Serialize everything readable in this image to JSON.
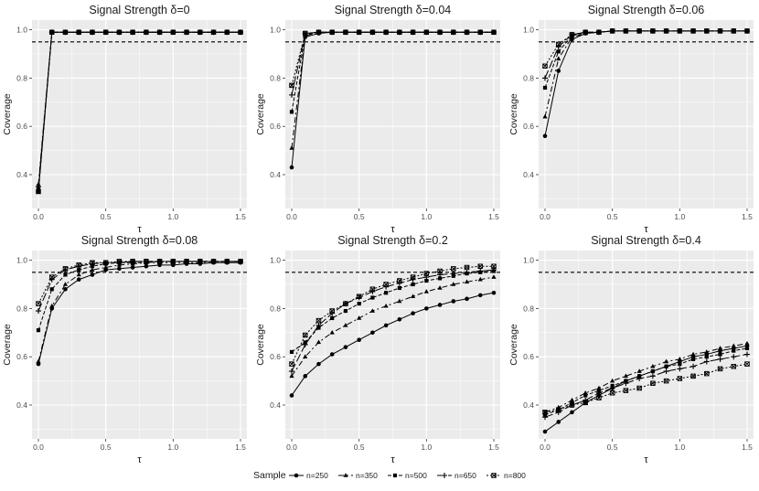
{
  "chart_data": [
    {
      "type": "line",
      "title": "Signal Strength δ=0",
      "xlabel": "τ",
      "ylabel": "Coverage",
      "xlim": [
        0,
        1.5
      ],
      "ylim": [
        0.3,
        1.0
      ],
      "xticks": [
        0,
        0.5,
        1,
        1.5
      ],
      "xtick_labels": [
        "0.0",
        "0.5",
        "1.0",
        "1.5"
      ],
      "yticks": [
        0.4,
        0.6,
        0.8,
        1.0
      ],
      "ytick_labels": [
        "0.4",
        "0.6",
        "0.8",
        "1.0"
      ],
      "reference_line": 0.95,
      "x": [
        0,
        0.1,
        0.2,
        0.3,
        0.4,
        0.5,
        0.6,
        0.7,
        0.8,
        0.9,
        1.0,
        1.1,
        1.2,
        1.3,
        1.4,
        1.5
      ],
      "series": [
        {
          "name": "n=250",
          "values": [
            0.33,
            0.99,
            0.99,
            0.99,
            0.99,
            0.99,
            0.99,
            0.99,
            0.99,
            0.99,
            0.99,
            0.99,
            0.99,
            0.99,
            0.99,
            0.99
          ]
        },
        {
          "name": "n=350",
          "values": [
            0.36,
            0.99,
            0.99,
            0.99,
            0.99,
            0.99,
            0.99,
            0.99,
            0.99,
            0.99,
            0.99,
            0.99,
            0.99,
            0.99,
            0.99,
            0.99
          ]
        },
        {
          "name": "n=500",
          "values": [
            0.34,
            0.99,
            0.99,
            0.99,
            0.99,
            0.99,
            0.99,
            0.99,
            0.99,
            0.99,
            0.99,
            0.99,
            0.99,
            0.99,
            0.99,
            0.99
          ]
        },
        {
          "name": "n=650",
          "values": [
            0.35,
            0.99,
            0.99,
            0.99,
            0.99,
            0.99,
            0.99,
            0.99,
            0.99,
            0.99,
            0.99,
            0.99,
            0.99,
            0.99,
            0.99,
            0.99
          ]
        },
        {
          "name": "n=800",
          "values": [
            0.33,
            0.99,
            0.99,
            0.99,
            0.99,
            0.99,
            0.99,
            0.99,
            0.99,
            0.99,
            0.99,
            0.99,
            0.99,
            0.99,
            0.99,
            0.99
          ]
        }
      ]
    },
    {
      "type": "line",
      "title": "Signal Strength δ=0.04",
      "xlabel": "τ",
      "ylabel": "Coverage",
      "xlim": [
        0,
        1.5
      ],
      "ylim": [
        0.3,
        1.0
      ],
      "xticks": [
        0,
        0.5,
        1,
        1.5
      ],
      "xtick_labels": [
        "0.0",
        "0.5",
        "1.0",
        "1.5"
      ],
      "yticks": [
        0.4,
        0.6,
        0.8,
        1.0
      ],
      "ytick_labels": [
        "0.4",
        "0.6",
        "0.8",
        "1.0"
      ],
      "reference_line": 0.95,
      "x": [
        0,
        0.1,
        0.2,
        0.3,
        0.4,
        0.5,
        0.6,
        0.7,
        0.8,
        0.9,
        1.0,
        1.1,
        1.2,
        1.3,
        1.4,
        1.5
      ],
      "series": [
        {
          "name": "n=250",
          "values": [
            0.43,
            0.97,
            0.985,
            0.99,
            0.99,
            0.99,
            0.99,
            0.99,
            0.99,
            0.99,
            0.99,
            0.99,
            0.99,
            0.99,
            0.99,
            0.99
          ]
        },
        {
          "name": "n=350",
          "values": [
            0.51,
            0.975,
            0.99,
            0.99,
            0.99,
            0.99,
            0.99,
            0.99,
            0.99,
            0.99,
            0.99,
            0.99,
            0.99,
            0.99,
            0.99,
            0.99
          ]
        },
        {
          "name": "n=500",
          "values": [
            0.66,
            0.98,
            0.99,
            0.99,
            0.99,
            0.99,
            0.99,
            0.99,
            0.99,
            0.99,
            0.99,
            0.99,
            0.99,
            0.99,
            0.99,
            0.99
          ]
        },
        {
          "name": "n=650",
          "values": [
            0.73,
            0.985,
            0.99,
            0.99,
            0.99,
            0.99,
            0.99,
            0.99,
            0.99,
            0.99,
            0.99,
            0.99,
            0.99,
            0.99,
            0.99,
            0.99
          ]
        },
        {
          "name": "n=800",
          "values": [
            0.77,
            0.985,
            0.99,
            0.99,
            0.99,
            0.99,
            0.99,
            0.99,
            0.99,
            0.99,
            0.99,
            0.99,
            0.99,
            0.99,
            0.99,
            0.99
          ]
        }
      ]
    },
    {
      "type": "line",
      "title": "Signal Strength δ=0.06",
      "xlabel": "τ",
      "ylabel": "Coverage",
      "xlim": [
        0,
        1.5
      ],
      "ylim": [
        0.3,
        1.0
      ],
      "xticks": [
        0,
        0.5,
        1,
        1.5
      ],
      "xtick_labels": [
        "0.0",
        "0.5",
        "1.0",
        "1.5"
      ],
      "yticks": [
        0.4,
        0.6,
        0.8,
        1.0
      ],
      "ytick_labels": [
        "0.4",
        "0.6",
        "0.8",
        "1.0"
      ],
      "reference_line": 0.95,
      "x": [
        0,
        0.1,
        0.2,
        0.3,
        0.4,
        0.5,
        0.6,
        0.7,
        0.8,
        0.9,
        1.0,
        1.1,
        1.2,
        1.3,
        1.4,
        1.5
      ],
      "series": [
        {
          "name": "n=250",
          "values": [
            0.56,
            0.83,
            0.96,
            0.985,
            0.99,
            0.995,
            0.995,
            0.995,
            0.995,
            0.995,
            0.995,
            0.995,
            0.995,
            0.995,
            0.995,
            0.995
          ]
        },
        {
          "name": "n=350",
          "values": [
            0.64,
            0.88,
            0.97,
            0.985,
            0.99,
            0.995,
            0.995,
            0.995,
            0.995,
            0.995,
            0.995,
            0.995,
            0.995,
            0.995,
            0.995,
            0.995
          ]
        },
        {
          "name": "n=500",
          "values": [
            0.76,
            0.91,
            0.975,
            0.99,
            0.99,
            0.995,
            0.995,
            0.995,
            0.995,
            0.995,
            0.995,
            0.995,
            0.995,
            0.995,
            0.995,
            0.995
          ]
        },
        {
          "name": "n=650",
          "values": [
            0.8,
            0.93,
            0.98,
            0.99,
            0.99,
            0.995,
            0.995,
            0.995,
            0.995,
            0.995,
            0.995,
            0.995,
            0.995,
            0.995,
            0.995,
            0.995
          ]
        },
        {
          "name": "n=800",
          "values": [
            0.85,
            0.94,
            0.98,
            0.99,
            0.99,
            0.995,
            0.995,
            0.995,
            0.995,
            0.995,
            0.995,
            0.995,
            0.995,
            0.995,
            0.995,
            0.995
          ]
        }
      ]
    },
    {
      "type": "line",
      "title": "Signal Strength δ=0.08",
      "xlabel": "τ",
      "ylabel": "Coverage",
      "xlim": [
        0,
        1.5
      ],
      "ylim": [
        0.3,
        1.0
      ],
      "xticks": [
        0,
        0.5,
        1,
        1.5
      ],
      "xtick_labels": [
        "0.0",
        "0.5",
        "1.0",
        "1.5"
      ],
      "yticks": [
        0.4,
        0.6,
        0.8,
        1.0
      ],
      "ytick_labels": [
        "0.4",
        "0.6",
        "0.8",
        "1.0"
      ],
      "reference_line": 0.95,
      "x": [
        0,
        0.1,
        0.2,
        0.3,
        0.4,
        0.5,
        0.6,
        0.7,
        0.8,
        0.9,
        1.0,
        1.1,
        1.2,
        1.3,
        1.4,
        1.5
      ],
      "series": [
        {
          "name": "n=250",
          "values": [
            0.57,
            0.8,
            0.88,
            0.92,
            0.94,
            0.96,
            0.965,
            0.97,
            0.975,
            0.98,
            0.98,
            0.985,
            0.985,
            0.99,
            0.99,
            0.99
          ]
        },
        {
          "name": "n=350",
          "values": [
            0.58,
            0.81,
            0.9,
            0.94,
            0.96,
            0.97,
            0.98,
            0.985,
            0.99,
            0.99,
            0.99,
            0.99,
            0.99,
            0.995,
            0.995,
            0.995
          ]
        },
        {
          "name": "n=500",
          "values": [
            0.71,
            0.88,
            0.94,
            0.96,
            0.975,
            0.985,
            0.99,
            0.99,
            0.99,
            0.995,
            0.995,
            0.995,
            0.995,
            0.995,
            0.995,
            0.995
          ]
        },
        {
          "name": "n=650",
          "values": [
            0.79,
            0.92,
            0.96,
            0.975,
            0.985,
            0.99,
            0.99,
            0.995,
            0.995,
            0.995,
            0.995,
            0.995,
            0.995,
            0.995,
            0.995,
            0.995
          ]
        },
        {
          "name": "n=800",
          "values": [
            0.82,
            0.93,
            0.965,
            0.98,
            0.99,
            0.99,
            0.995,
            0.995,
            0.995,
            0.995,
            0.995,
            0.995,
            0.995,
            0.995,
            0.995,
            0.995
          ]
        }
      ]
    },
    {
      "type": "line",
      "title": "Signal Strength δ=0.2",
      "xlabel": "τ",
      "ylabel": "Coverage",
      "xlim": [
        0,
        1.5
      ],
      "ylim": [
        0.3,
        1.0
      ],
      "xticks": [
        0,
        0.5,
        1,
        1.5
      ],
      "xtick_labels": [
        "0.0",
        "0.5",
        "1.0",
        "1.5"
      ],
      "yticks": [
        0.4,
        0.6,
        0.8,
        1.0
      ],
      "ytick_labels": [
        "0.4",
        "0.6",
        "0.8",
        "1.0"
      ],
      "reference_line": 0.95,
      "x": [
        0,
        0.1,
        0.2,
        0.3,
        0.4,
        0.5,
        0.6,
        0.7,
        0.8,
        0.9,
        1.0,
        1.1,
        1.2,
        1.3,
        1.4,
        1.5
      ],
      "series": [
        {
          "name": "n=250",
          "values": [
            0.44,
            0.52,
            0.57,
            0.61,
            0.64,
            0.67,
            0.7,
            0.73,
            0.755,
            0.78,
            0.8,
            0.815,
            0.83,
            0.84,
            0.855,
            0.865
          ]
        },
        {
          "name": "n=350",
          "values": [
            0.52,
            0.6,
            0.66,
            0.7,
            0.73,
            0.76,
            0.79,
            0.81,
            0.83,
            0.85,
            0.87,
            0.885,
            0.9,
            0.91,
            0.92,
            0.93
          ]
        },
        {
          "name": "n=500",
          "values": [
            0.62,
            0.66,
            0.72,
            0.76,
            0.79,
            0.82,
            0.845,
            0.865,
            0.885,
            0.9,
            0.915,
            0.925,
            0.935,
            0.945,
            0.95,
            0.955
          ]
        },
        {
          "name": "n=650",
          "values": [
            0.54,
            0.65,
            0.73,
            0.78,
            0.82,
            0.845,
            0.87,
            0.89,
            0.905,
            0.92,
            0.93,
            0.94,
            0.945,
            0.95,
            0.955,
            0.96
          ]
        },
        {
          "name": "n=800",
          "values": [
            0.57,
            0.69,
            0.75,
            0.79,
            0.82,
            0.85,
            0.88,
            0.9,
            0.915,
            0.93,
            0.945,
            0.955,
            0.965,
            0.97,
            0.975,
            0.975
          ]
        }
      ]
    },
    {
      "type": "line",
      "title": "Signal Strength δ=0.4",
      "xlabel": "τ",
      "ylabel": "Coverage",
      "xlim": [
        0,
        1.5
      ],
      "ylim": [
        0.3,
        1.0
      ],
      "xticks": [
        0,
        0.5,
        1,
        1.5
      ],
      "xtick_labels": [
        "0.0",
        "0.5",
        "1.0",
        "1.5"
      ],
      "yticks": [
        0.4,
        0.6,
        0.8,
        1.0
      ],
      "ytick_labels": [
        "0.4",
        "0.6",
        "0.8",
        "1.0"
      ],
      "reference_line": 0.95,
      "x": [
        0,
        0.1,
        0.2,
        0.3,
        0.4,
        0.5,
        0.6,
        0.7,
        0.8,
        0.9,
        1.0,
        1.1,
        1.2,
        1.3,
        1.4,
        1.5
      ],
      "series": [
        {
          "name": "n=250",
          "values": [
            0.29,
            0.33,
            0.37,
            0.41,
            0.44,
            0.47,
            0.5,
            0.52,
            0.54,
            0.56,
            0.58,
            0.6,
            0.61,
            0.625,
            0.635,
            0.645
          ]
        },
        {
          "name": "n=350",
          "values": [
            0.37,
            0.39,
            0.42,
            0.45,
            0.47,
            0.5,
            0.52,
            0.54,
            0.56,
            0.58,
            0.59,
            0.61,
            0.62,
            0.635,
            0.645,
            0.655
          ]
        },
        {
          "name": "n=500",
          "values": [
            0.36,
            0.38,
            0.41,
            0.44,
            0.46,
            0.48,
            0.5,
            0.52,
            0.54,
            0.56,
            0.57,
            0.59,
            0.6,
            0.61,
            0.625,
            0.635
          ]
        },
        {
          "name": "n=650",
          "values": [
            0.35,
            0.37,
            0.4,
            0.42,
            0.45,
            0.47,
            0.49,
            0.51,
            0.52,
            0.54,
            0.55,
            0.56,
            0.58,
            0.59,
            0.6,
            0.61
          ]
        },
        {
          "name": "n=800",
          "values": [
            0.37,
            0.38,
            0.4,
            0.41,
            0.43,
            0.45,
            0.46,
            0.47,
            0.49,
            0.5,
            0.51,
            0.52,
            0.53,
            0.55,
            0.56,
            0.57
          ]
        }
      ]
    }
  ],
  "legend": {
    "title": "Sample",
    "entries": [
      "n=250",
      "n=350",
      "n=500",
      "n=650",
      "n=800"
    ]
  },
  "colors": {
    "panel_bg": "#ebebeb",
    "grid": "#ffffff",
    "line": "#000000",
    "text": "#1a1a1a",
    "tick_text": "#4d4d4d"
  }
}
